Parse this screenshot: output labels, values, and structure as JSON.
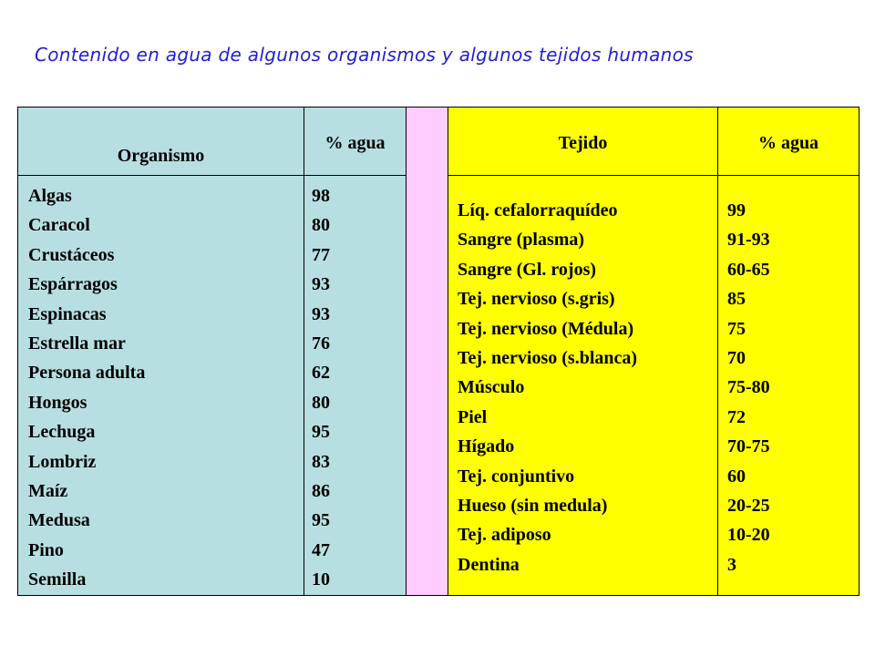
{
  "title": "Contenido en agua de algunos organismos y algunos tejidos humanos",
  "left_table": {
    "header_name": "Organismo",
    "header_value": "% agua",
    "rows": [
      {
        "name": "Algas",
        "value": "98"
      },
      {
        "name": "Caracol",
        "value": "80"
      },
      {
        "name": "Crustáceos",
        "value": "77"
      },
      {
        "name": "Espárragos",
        "value": "93"
      },
      {
        "name": "Espinacas",
        "value": "93"
      },
      {
        "name": "Estrella mar",
        "value": "76"
      },
      {
        "name": "Persona adulta",
        "value": "62"
      },
      {
        "name": "Hongos",
        "value": "80"
      },
      {
        "name": "Lechuga",
        "value": "95"
      },
      {
        "name": "Lombriz",
        "value": "83"
      },
      {
        "name": "Maíz",
        "value": "86"
      },
      {
        "name": "Medusa",
        "value": "95"
      },
      {
        "name": "Pino",
        "value": "47"
      },
      {
        "name": "Semilla",
        "value": "10"
      }
    ]
  },
  "right_table": {
    "header_name": "Tejido",
    "header_value": "% agua",
    "rows": [
      {
        "name": "Líq. cefalorraquídeo",
        "value": "99"
      },
      {
        "name": "Sangre (plasma)",
        "value": "91-93"
      },
      {
        "name": "Sangre (Gl. rojos)",
        "value": "60-65"
      },
      {
        "name": "Tej. nervioso (s.gris)",
        "value": "85"
      },
      {
        "name": "Tej. nervioso (Médula)",
        "value": "75"
      },
      {
        "name": "Tej. nervioso (s.blanca)",
        "value": "70"
      },
      {
        "name": "Músculo",
        "value": "75-80"
      },
      {
        "name": "Piel",
        "value": "72"
      },
      {
        "name": "Hígado",
        "value": "70-75"
      },
      {
        "name": "Tej. conjuntivo",
        "value": "60"
      },
      {
        "name": "Hueso (sin medula)",
        "value": "20-25"
      },
      {
        "name": "Tej. adiposo",
        "value": "10-20"
      },
      {
        "name": "Dentina",
        "value": "3"
      }
    ]
  },
  "colors": {
    "title": "#1f1fd6",
    "organism_columns": "#b7dfe1",
    "separator_column": "#ffccff",
    "tissue_columns": "#ffff00"
  }
}
